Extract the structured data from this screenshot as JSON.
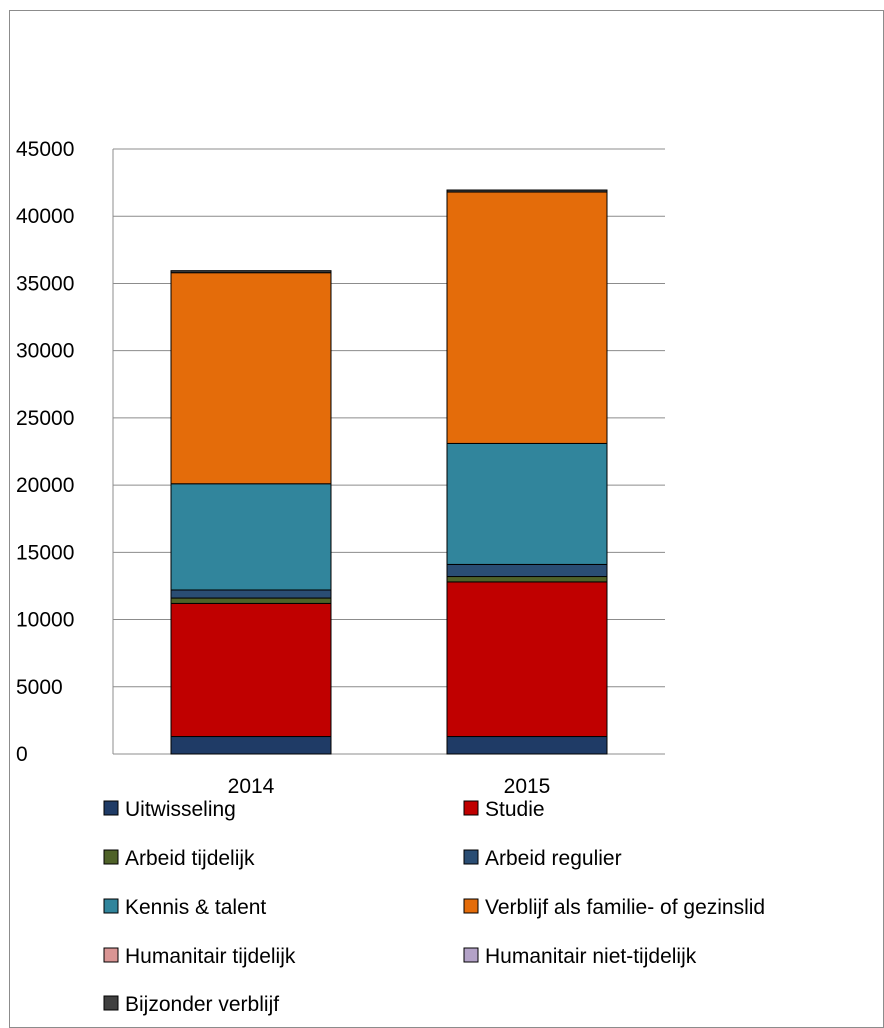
{
  "chart_data": {
    "type": "bar",
    "stacked": true,
    "categories": [
      "2014",
      "2015"
    ],
    "ylim": [
      0,
      45000
    ],
    "yticks": [
      0,
      5000,
      10000,
      15000,
      20000,
      25000,
      30000,
      35000,
      40000,
      45000
    ],
    "ytick_labels": [
      "0",
      "5000",
      "10000",
      "15000",
      "20000",
      "25000",
      "30000",
      "35000",
      "40000",
      "45000"
    ],
    "grid": true,
    "legend_position": "bottom",
    "series": [
      {
        "name": "Uitwisseling",
        "color": "#1f3b66",
        "values": [
          1300,
          1300
        ]
      },
      {
        "name": "Studie",
        "color": "#c00000",
        "values": [
          9900,
          11500
        ]
      },
      {
        "name": "Arbeid tijdelijk",
        "color": "#4f6228",
        "values": [
          400,
          400
        ]
      },
      {
        "name": "Arbeid regulier",
        "color": "#2a4d73",
        "values": [
          600,
          900
        ]
      },
      {
        "name": "Kennis & talent",
        "color": "#31859c",
        "values": [
          7900,
          9000
        ]
      },
      {
        "name": "Verblijf als familie- of gezinslid",
        "color": "#e46c0a",
        "values": [
          15700,
          18700
        ]
      },
      {
        "name": "Humanitair tijdelijk",
        "color": "#d99594",
        "values": [
          0,
          0
        ]
      },
      {
        "name": "Humanitair niet-tijdelijk",
        "color": "#b3a2c7",
        "values": [
          0,
          0
        ]
      },
      {
        "name": "Bijzonder verblijf",
        "color": "#404040",
        "values": [
          150,
          150
        ]
      }
    ]
  }
}
